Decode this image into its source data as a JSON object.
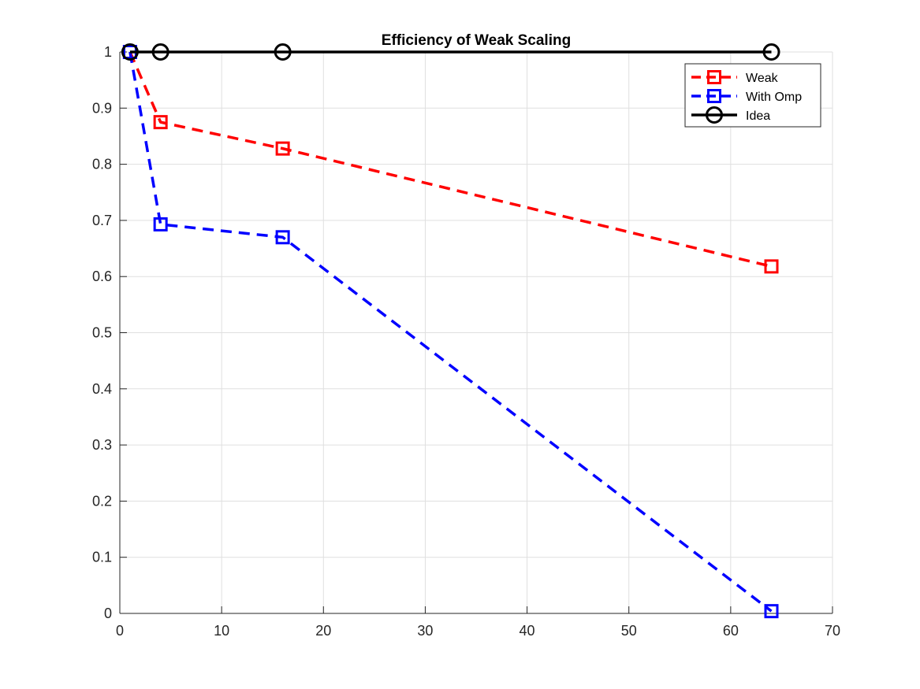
{
  "chart_data": {
    "type": "line",
    "title": "Efficiency of Weak Scaling",
    "xlabel": "",
    "ylabel": "",
    "xlim": [
      0,
      70
    ],
    "ylim": [
      0,
      1
    ],
    "xticks": [
      0,
      10,
      20,
      30,
      40,
      50,
      60,
      70
    ],
    "yticks": [
      0,
      0.1,
      0.2,
      0.3,
      0.4,
      0.5,
      0.6,
      0.7,
      0.8,
      0.9,
      1
    ],
    "grid": true,
    "legend_position": "top-right",
    "series": [
      {
        "name": "Weak",
        "x": [
          1,
          4,
          16,
          64
        ],
        "y": [
          1.0,
          0.875,
          0.828,
          0.618
        ],
        "color": "#ff0000",
        "line_style": "dashed",
        "marker": "square"
      },
      {
        "name": "With Omp",
        "x": [
          1,
          4,
          16,
          64
        ],
        "y": [
          1.0,
          0.693,
          0.67,
          0.004
        ],
        "color": "#0000ff",
        "line_style": "dashed",
        "marker": "square"
      },
      {
        "name": "Idea",
        "x": [
          1,
          4,
          16,
          64
        ],
        "y": [
          1.0,
          1.0,
          1.0,
          1.0
        ],
        "color": "#000000",
        "line_style": "solid",
        "marker": "circle"
      }
    ]
  }
}
